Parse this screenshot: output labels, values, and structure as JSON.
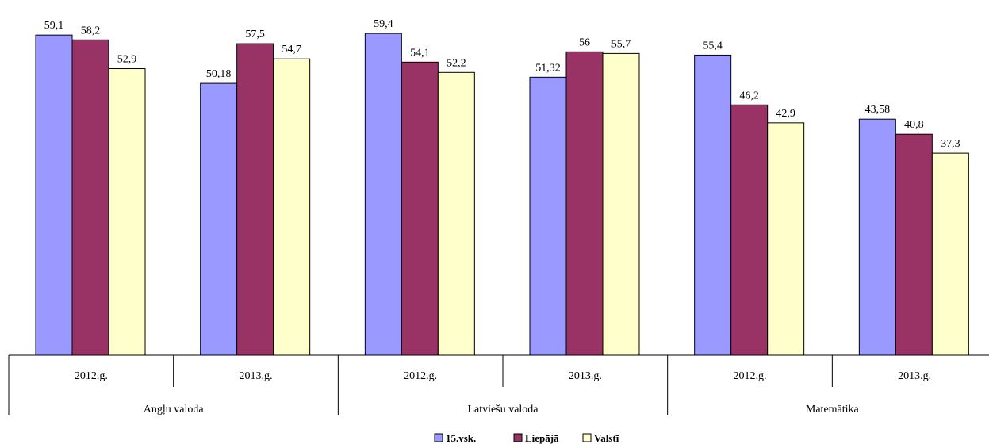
{
  "chart_data": {
    "type": "bar",
    "groups": [
      {
        "label": "Angļu valoda",
        "years": [
          "2012.g.",
          "2013.g."
        ]
      },
      {
        "label": "Latviešu valoda",
        "years": [
          "2012.g.",
          "2013.g."
        ]
      },
      {
        "label": "Matemātika",
        "years": [
          "2012.g.",
          "2013.g."
        ]
      }
    ],
    "series": [
      {
        "name": "15.vsk.",
        "color": "#9999ff",
        "values": [
          59.1,
          50.18,
          59.4,
          51.32,
          55.4,
          43.58
        ],
        "labels": [
          "59,1",
          "50,18",
          "59,4",
          "51,32",
          "55,4",
          "43,58"
        ]
      },
      {
        "name": "Liepājā",
        "color": "#993366",
        "values": [
          58.2,
          57.5,
          54.1,
          56,
          46.2,
          40.8
        ],
        "labels": [
          "58,2",
          "57,5",
          "54,1",
          "56",
          "46,2",
          "40,8"
        ]
      },
      {
        "name": "Valstī",
        "color": "#ffffcc",
        "values": [
          52.9,
          54.7,
          52.2,
          55.7,
          42.9,
          37.3
        ],
        "labels": [
          "52,9",
          "54,7",
          "52,2",
          "55,7",
          "42,9",
          "37,3"
        ]
      }
    ],
    "ylim": [
      0,
      60
    ],
    "grid": false,
    "legend_position": "bottom"
  }
}
